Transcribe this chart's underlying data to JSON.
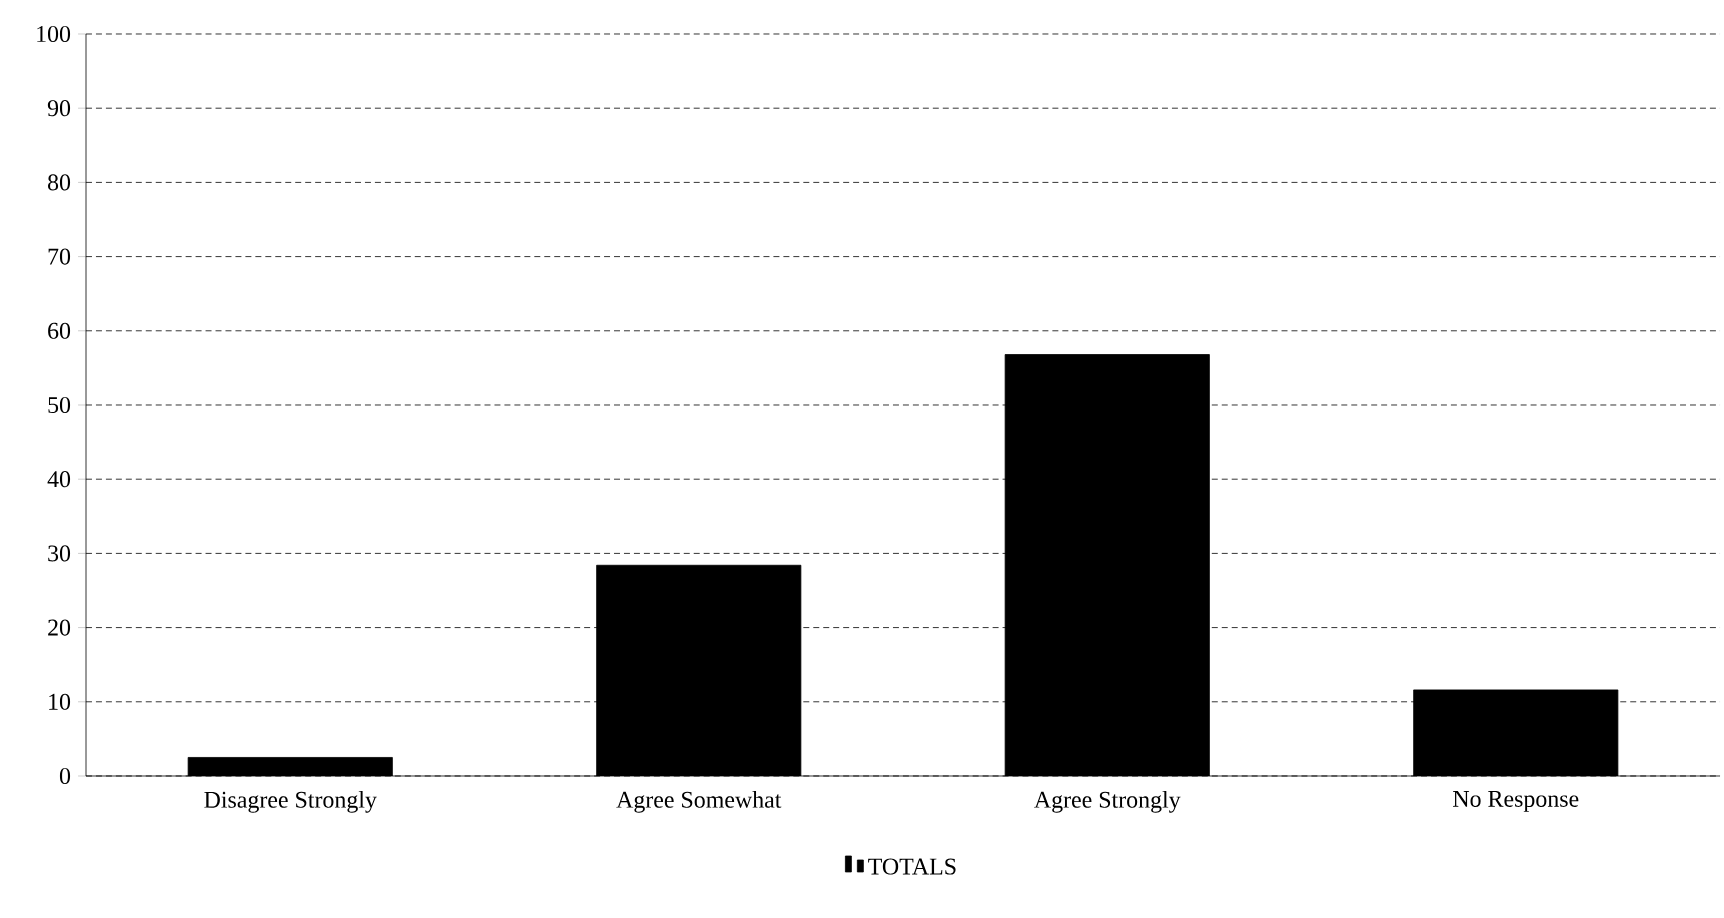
{
  "chart_data": {
    "type": "bar",
    "categories": [
      "Disagree Strongly",
      "Agree Somewhat",
      "Agree Strongly",
      "No Response"
    ],
    "series": [
      {
        "name": "TOTALS",
        "color": "#000000",
        "values": [
          2.5,
          28.4,
          56.8,
          11.6
        ]
      }
    ],
    "ylim": [
      0,
      100
    ],
    "yticks": [
      0,
      10,
      20,
      30,
      40,
      50,
      60,
      70,
      80,
      90,
      100
    ],
    "grid": "y",
    "legend": "bottom"
  }
}
